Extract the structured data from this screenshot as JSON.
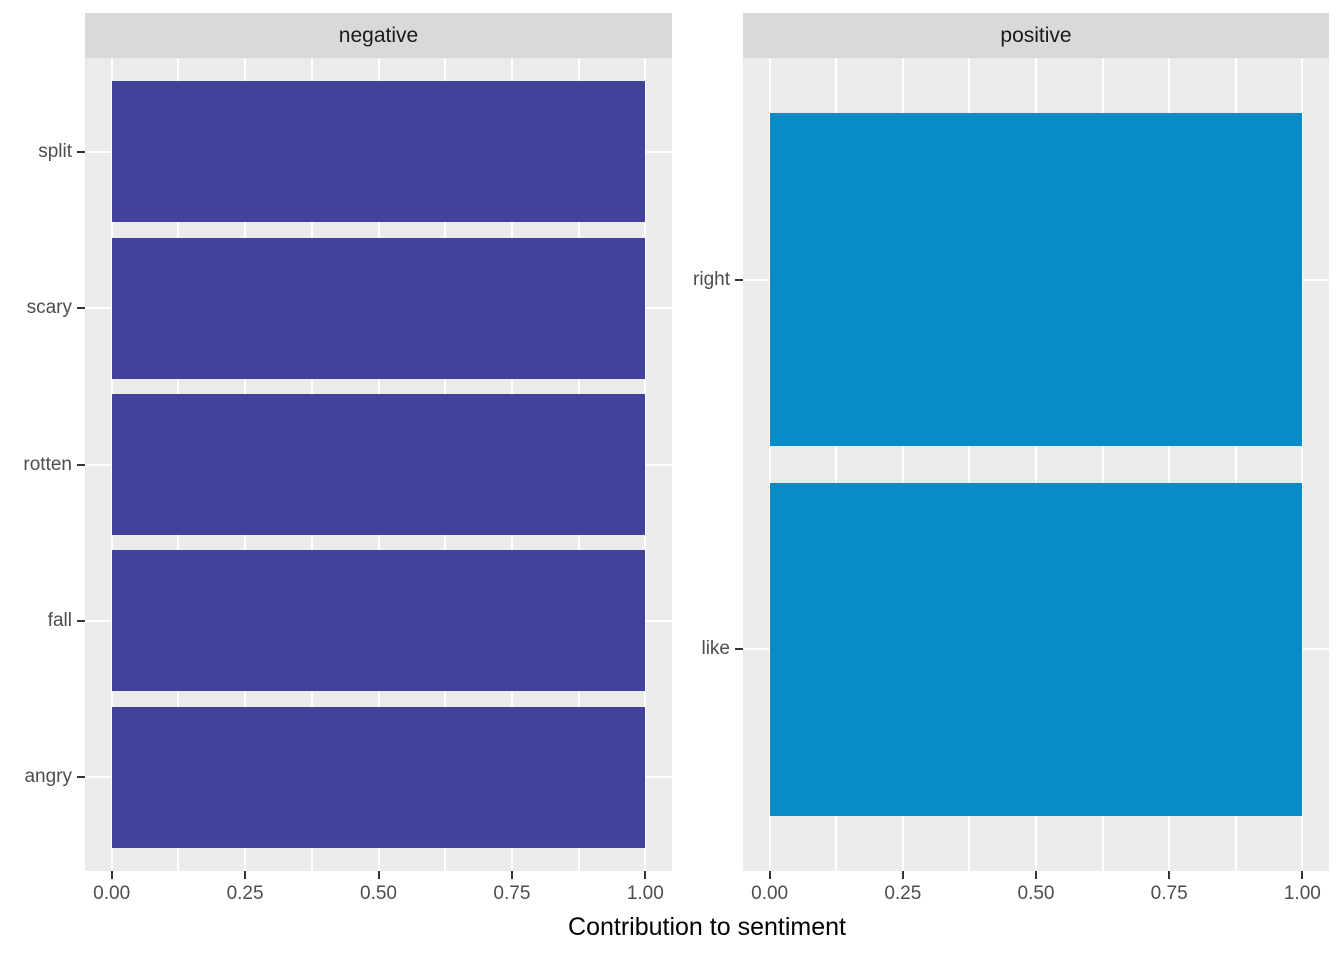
{
  "figure": {
    "background": "#FFFFFF",
    "panel_background": "#EBEBEB",
    "strip_background": "#D9D9D9",
    "gridline_color": "#FFFFFF",
    "axis_text_color": "#4D4D4D",
    "tick_mark_color": "#333333",
    "strip_text_color": "#1A1A1A",
    "axis_title_color": "#000000"
  },
  "chart_data": {
    "type": "bar",
    "orientation": "horizontal",
    "title": "",
    "xlabel": "Contribution to sentiment",
    "ylabel": "",
    "xlim": [
      -0.05,
      1.05
    ],
    "x_tick_labels": [
      "0.00",
      "0.25",
      "0.50",
      "0.75",
      "1.00"
    ],
    "x_tick_values": [
      0,
      0.25,
      0.5,
      0.75,
      1.0
    ],
    "x_minor_gridlines": [
      0.125,
      0.375,
      0.625,
      0.875
    ],
    "grid": true,
    "legend_position": "none",
    "facets": [
      {
        "label": "negative",
        "bar_color": "#42429B",
        "categories": [
          "split",
          "scary",
          "rotten",
          "fall",
          "angry"
        ],
        "values": [
          1.0,
          1.0,
          1.0,
          1.0,
          1.0
        ]
      },
      {
        "label": "positive",
        "bar_color": "#098CC5",
        "categories": [
          "right",
          "like"
        ],
        "values": [
          1.0,
          1.0
        ]
      }
    ]
  }
}
